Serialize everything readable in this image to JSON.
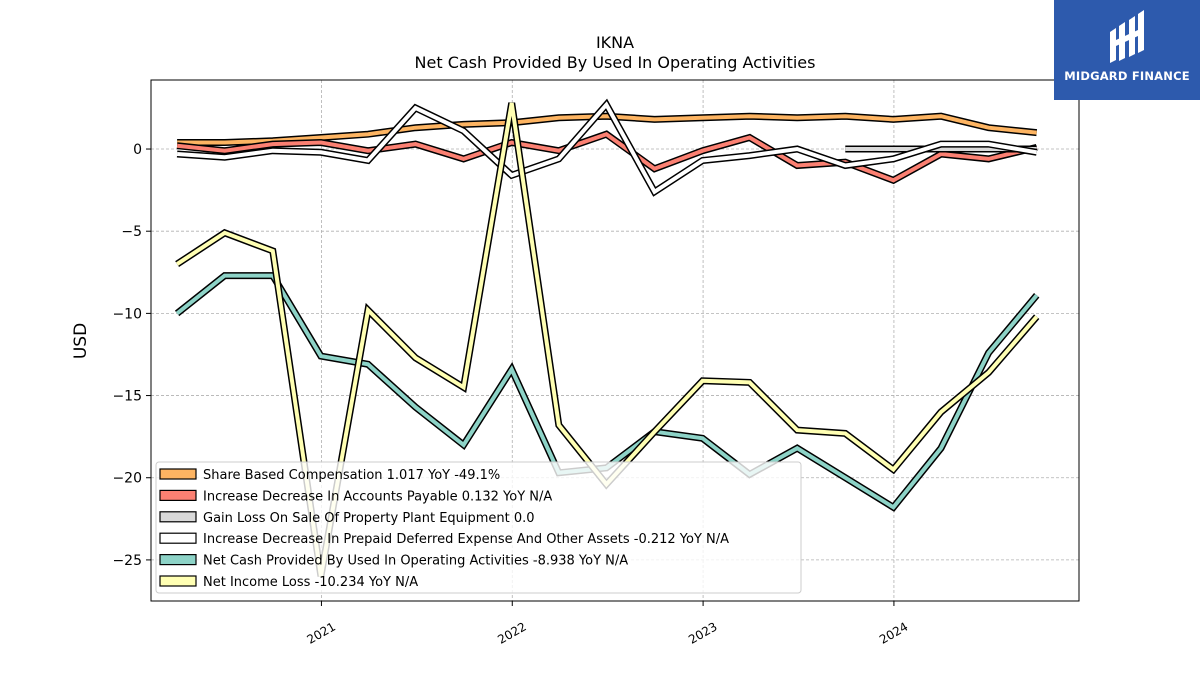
{
  "brand": {
    "name": "MIDGARD FINANCE",
    "bg_color": "#2d5aad"
  },
  "chart_data": {
    "type": "line",
    "title": "IKNA",
    "subtitle": "Net Cash Provided By Used In Operating Activities",
    "ylabel": "USD",
    "xlabel": "",
    "ylim": [
      -27.5,
      4.2
    ],
    "xlim": [
      "2020-02-10",
      "2024-12-20"
    ],
    "yticks": [
      0,
      -5,
      -10,
      -15,
      -20,
      -25
    ],
    "ytick_labels": [
      "0",
      "−5",
      "−10",
      "−15",
      "−20",
      "−25"
    ],
    "xticks": [
      "2021-01-01",
      "2022-01-01",
      "2023-01-01",
      "2024-01-01"
    ],
    "xtick_labels": [
      "2021",
      "2022",
      "2023",
      "2024"
    ],
    "grid": true,
    "legend_position": "lower-left",
    "series": [
      {
        "name": "Share Based Compensation",
        "legend_label": "Share Based Compensation  1.017 YoY -49.1%",
        "color": "#fdb462",
        "x": [
          "2020-03-31",
          "2020-06-30",
          "2020-09-30",
          "2020-12-31",
          "2021-03-31",
          "2021-06-30",
          "2021-09-30",
          "2021-12-31",
          "2022-03-31",
          "2022-06-30",
          "2022-09-30",
          "2022-12-31",
          "2023-03-31",
          "2023-06-30",
          "2023-09-30",
          "2023-12-31",
          "2024-03-31",
          "2024-06-30",
          "2024-09-30"
        ],
        "y": [
          0.4,
          0.4,
          0.5,
          0.7,
          0.9,
          1.3,
          1.5,
          1.6,
          1.9,
          2.0,
          1.8,
          1.9,
          2.0,
          1.9,
          2.0,
          1.8,
          2.0,
          1.3,
          1.0
        ]
      },
      {
        "name": "Increase Decrease In Accounts Payable",
        "legend_label": "Increase Decrease In Accounts Payable  0.132 YoY N/A",
        "color": "#fb8072",
        "x": [
          "2020-03-31",
          "2020-06-30",
          "2020-09-30",
          "2020-12-31",
          "2021-03-31",
          "2021-06-30",
          "2021-09-30",
          "2021-12-31",
          "2022-03-31",
          "2022-06-30",
          "2022-09-30",
          "2022-12-31",
          "2023-03-31",
          "2023-06-30",
          "2023-09-30",
          "2023-12-31",
          "2024-03-31",
          "2024-06-30",
          "2024-09-30"
        ],
        "y": [
          0.2,
          -0.1,
          0.3,
          0.4,
          -0.1,
          0.3,
          -0.6,
          0.4,
          -0.1,
          0.9,
          -1.2,
          -0.1,
          0.7,
          -1.0,
          -0.8,
          -1.9,
          -0.3,
          -0.6,
          0.1
        ]
      },
      {
        "name": "Gain Loss On Sale Of Property Plant Equipment",
        "legend_label": "Gain Loss On Sale Of Property Plant Equipment  0.0",
        "color": "#d9d9d9",
        "x": [
          "2023-09-30",
          "2023-12-31",
          "2024-03-31",
          "2024-06-30",
          "2024-09-30"
        ],
        "y": [
          0.0,
          0.0,
          0.0,
          0.0,
          0.0
        ]
      },
      {
        "name": "Increase Decrease In Prepaid Deferred Expense And Other Assets",
        "legend_label": "Increase Decrease In Prepaid Deferred Expense And Other Assets  -0.212 YoY N/A",
        "color": "#ffffff",
        "x": [
          "2020-03-31",
          "2020-06-30",
          "2020-09-30",
          "2020-12-31",
          "2021-03-31",
          "2021-06-30",
          "2021-09-30",
          "2021-12-31",
          "2022-03-31",
          "2022-06-30",
          "2022-09-30",
          "2022-12-31",
          "2023-03-31",
          "2023-06-30",
          "2023-09-30",
          "2023-12-31",
          "2024-03-31",
          "2024-06-30",
          "2024-09-30"
        ],
        "y": [
          -0.3,
          -0.5,
          -0.1,
          -0.2,
          -0.7,
          2.5,
          1.1,
          -1.6,
          -0.6,
          2.7,
          -2.6,
          -0.7,
          -0.4,
          0.0,
          -1.0,
          -0.6,
          0.3,
          0.3,
          -0.2
        ]
      },
      {
        "name": "Net Cash Provided By Used In Operating Activities",
        "legend_label": "Net Cash Provided By Used In Operating Activities  -8.938 YoY N/A",
        "color": "#8dd3c7",
        "x": [
          "2020-03-31",
          "2020-06-30",
          "2020-09-30",
          "2020-12-31",
          "2021-03-31",
          "2021-06-30",
          "2021-09-30",
          "2021-12-31",
          "2022-03-31",
          "2022-06-30",
          "2022-09-30",
          "2022-12-31",
          "2023-03-31",
          "2023-06-30",
          "2023-09-30",
          "2023-12-31",
          "2024-03-31",
          "2024-06-30",
          "2024-09-30"
        ],
        "y": [
          -10.0,
          -7.7,
          -7.7,
          -12.6,
          -13.1,
          -15.7,
          -18.0,
          -13.4,
          -19.7,
          -19.4,
          -17.2,
          -17.6,
          -19.8,
          -18.2,
          -20.0,
          -21.8,
          -18.2,
          -12.4,
          -8.9
        ]
      },
      {
        "name": "Net Income Loss",
        "legend_label": "Net Income Loss  -10.234 YoY N/A",
        "color": "#ffffb3",
        "x": [
          "2020-03-31",
          "2020-06-30",
          "2020-09-30",
          "2020-12-31",
          "2021-03-31",
          "2021-06-30",
          "2021-09-30",
          "2021-12-31",
          "2022-03-31",
          "2022-06-30",
          "2022-09-30",
          "2022-12-31",
          "2023-03-31",
          "2023-06-30",
          "2023-09-30",
          "2023-12-31",
          "2024-03-31",
          "2024-06-30",
          "2024-09-30"
        ],
        "y": [
          -7.0,
          -5.1,
          -6.2,
          -26.0,
          -9.8,
          -12.7,
          -14.5,
          2.8,
          -16.8,
          -20.4,
          -17.2,
          -14.1,
          -14.2,
          -17.1,
          -17.3,
          -19.5,
          -16.0,
          -13.6,
          -10.2
        ]
      }
    ]
  }
}
